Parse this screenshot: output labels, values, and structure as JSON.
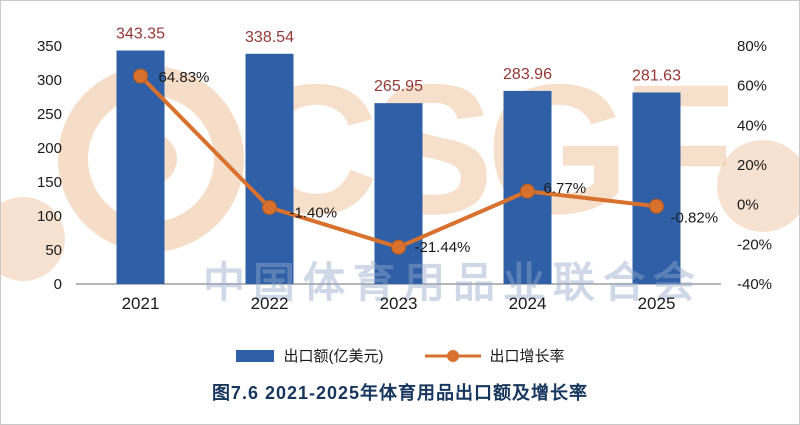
{
  "chart_data": {
    "type": "bar",
    "combo": "bar+line",
    "title": "图7.6 2021-2025年体育用品出口额及增长率",
    "categories": [
      "2021",
      "2022",
      "2023",
      "2024",
      "2025"
    ],
    "series": [
      {
        "name": "出口额(亿美元)",
        "type": "bar",
        "color": "#2e5fa7",
        "values": [
          343.35,
          338.54,
          265.95,
          283.96,
          281.63
        ],
        "labels": [
          "343.35",
          "338.54",
          "265.95",
          "283.96",
          "281.63"
        ]
      },
      {
        "name": "出口增长率",
        "type": "line",
        "color": "#d9712e",
        "values": [
          64.83,
          -1.4,
          -21.44,
          6.77,
          -0.82
        ],
        "labels": [
          "64.83%",
          "-1.40%",
          "-21.44%",
          "6.77%",
          "-0.82%"
        ]
      }
    ],
    "left_axis": {
      "min": 0,
      "max": 350,
      "step": 50,
      "ticks": [
        "0",
        "50",
        "100",
        "150",
        "200",
        "250",
        "300",
        "350"
      ]
    },
    "right_axis": {
      "min": -40,
      "max": 80,
      "step": 20,
      "ticks": [
        "-40%",
        "-20%",
        "0%",
        "20%",
        "40%",
        "60%",
        "80%"
      ]
    },
    "legend_position": "bottom",
    "grid": false,
    "styles": {
      "bar_label_color": "#953735",
      "axis_text_color": "#1a1a1a",
      "axis_line_color": "#8a8a8a"
    }
  },
  "legend": {
    "bar_label": "出口额(亿美元)",
    "line_label": "出口增长率"
  },
  "watermark": {
    "latin": "CSGF",
    "chinese": "中国体育用品业联合会"
  }
}
